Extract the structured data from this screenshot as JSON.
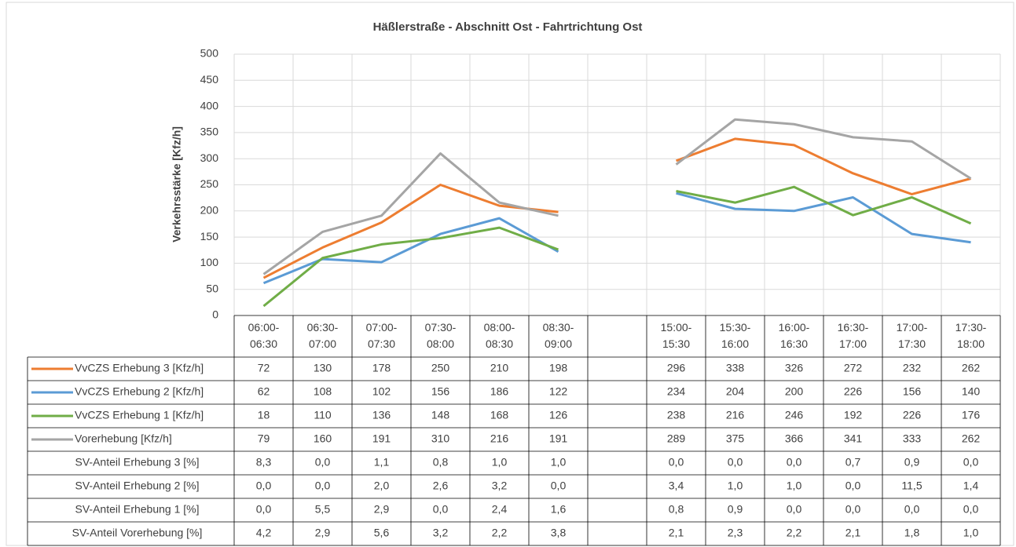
{
  "chart_data": {
    "type": "line",
    "title": "Häßlerstraße - Abschnitt Ost - Fahrtrichtung Ost",
    "y_label": "Verkehrsstärke [Kfz/h]",
    "categories": [
      "06:00-06:30",
      "06:30-07:00",
      "07:00-07:30",
      "07:30-08:00",
      "08:00-08:30",
      "08:30-09:00",
      null,
      "15:00-15:30",
      "15:30-16:00",
      "16:00-16:30",
      "16:30-17:00",
      "17:00-17:30",
      "17:30-18:00"
    ],
    "ylim": [
      0,
      500
    ],
    "yticks": [
      0,
      50,
      100,
      150,
      200,
      250,
      300,
      350,
      400,
      450,
      500
    ],
    "grid": true,
    "series": [
      {
        "name": "VvCZS Erhebung 3 [Kfz/h]",
        "color": "#ed7d31",
        "values": [
          72,
          130,
          178,
          250,
          210,
          198,
          null,
          296,
          338,
          326,
          272,
          232,
          262
        ]
      },
      {
        "name": "VvCZS Erhebung 2 [Kfz/h]",
        "color": "#5b9bd5",
        "values": [
          62,
          108,
          102,
          156,
          186,
          122,
          null,
          234,
          204,
          200,
          226,
          156,
          140
        ]
      },
      {
        "name": "VvCZS Erhebung 1 [Kfz/h]",
        "color": "#70ad47",
        "values": [
          18,
          110,
          136,
          148,
          168,
          126,
          null,
          238,
          216,
          246,
          192,
          226,
          176
        ]
      },
      {
        "name": "Vorerhebung [Kfz/h]",
        "color": "#a5a5a5",
        "values": [
          79,
          160,
          191,
          310,
          216,
          191,
          null,
          289,
          375,
          366,
          341,
          333,
          262
        ]
      }
    ],
    "table_rows": [
      {
        "name": "SV-Anteil Erhebung 3 [%]",
        "values": [
          8.3,
          0,
          1.1,
          0.8,
          1,
          1,
          null,
          0,
          0,
          0,
          0.7,
          0.9,
          0
        ],
        "value_labels": [
          "8,3",
          "0,0",
          "1,1",
          "0,8",
          "1,0",
          "1,0",
          null,
          "0,0",
          "0,0",
          "0,0",
          "0,7",
          "0,9",
          "0,0"
        ]
      },
      {
        "name": "SV-Anteil Erhebung 2 [%]",
        "values": [
          0,
          0,
          2,
          2.6,
          3.2,
          0,
          null,
          3.4,
          1,
          1,
          0,
          11.5,
          1.4
        ],
        "value_labels": [
          "0,0",
          "0,0",
          "2,0",
          "2,6",
          "3,2",
          "0,0",
          null,
          "3,4",
          "1,0",
          "1,0",
          "0,0",
          "11,5",
          "1,4"
        ]
      },
      {
        "name": "SV-Anteil Erhebung 1 [%]",
        "values": [
          0,
          5.5,
          2.9,
          0,
          2.4,
          1.6,
          null,
          0.8,
          0.9,
          0,
          0,
          0,
          0
        ],
        "value_labels": [
          "0,0",
          "5,5",
          "2,9",
          "0,0",
          "2,4",
          "1,6",
          null,
          "0,8",
          "0,9",
          "0,0",
          "0,0",
          "0,0",
          "0,0"
        ]
      },
      {
        "name": "SV-Anteil Vorerhebung [%]",
        "values": [
          4.2,
          2.9,
          5.6,
          3.2,
          2.2,
          3.8,
          null,
          2.1,
          2.3,
          2.2,
          2.1,
          1.8,
          1
        ],
        "value_labels": [
          "4,2",
          "2,9",
          "5,6",
          "3,2",
          "2,2",
          "3,8",
          null,
          "2,1",
          "2,3",
          "2,2",
          "2,1",
          "1,8",
          "1,0"
        ]
      }
    ]
  }
}
